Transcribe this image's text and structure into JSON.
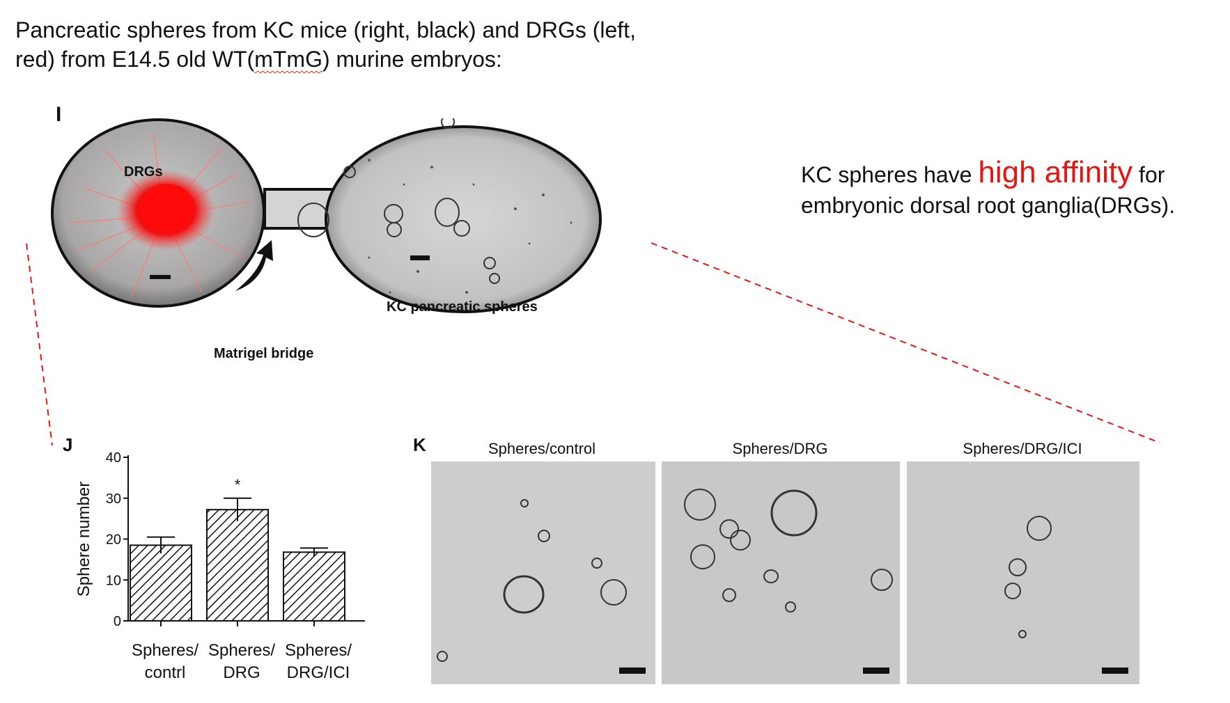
{
  "title": {
    "line1": "Pancreatic spheres from KC mice (right, black) and DRGs (left,",
    "line2_pre": "red) from E14.5 old WT(",
    "line2_squiggle": "mTmG",
    "line2_post": ") murine embryos:"
  },
  "panel_i": {
    "letter": "I",
    "drg_label": "DRGs",
    "kc_label": "KC pancreatic spheres",
    "bridge_label": "Matrigel bridge"
  },
  "affinity": {
    "pre": "KC spheres have ",
    "highlight": "high affinity",
    "post": " for embryonic dorsal root ganglia(DRGs).",
    "highlight_color": "#e8140f"
  },
  "panel_j": {
    "letter": "J"
  },
  "panel_k": {
    "letter": "K",
    "titles": [
      "Spheres/control",
      "Spheres/DRG",
      "Spheres/DRG/ICI"
    ]
  },
  "chart_data": {
    "type": "bar",
    "categories": [
      [
        "Spheres/",
        "contrl"
      ],
      [
        "Spheres/",
        "DRG"
      ],
      [
        "Spheres/",
        "DRG/ICI"
      ]
    ],
    "values": [
      18.5,
      27.2,
      16.8
    ],
    "errors": [
      2,
      2.8,
      1
    ],
    "significance": [
      "",
      "*",
      ""
    ],
    "ylabel": "Sphere number",
    "ylim": [
      0,
      40
    ],
    "yticks": [
      0,
      10,
      20,
      30,
      40
    ],
    "bar_pattern": "diagonal-hatch",
    "grid": false
  },
  "colors": {
    "connector_dashes": "#e8140f",
    "drg_fluorescence": "#ff1a1a"
  }
}
